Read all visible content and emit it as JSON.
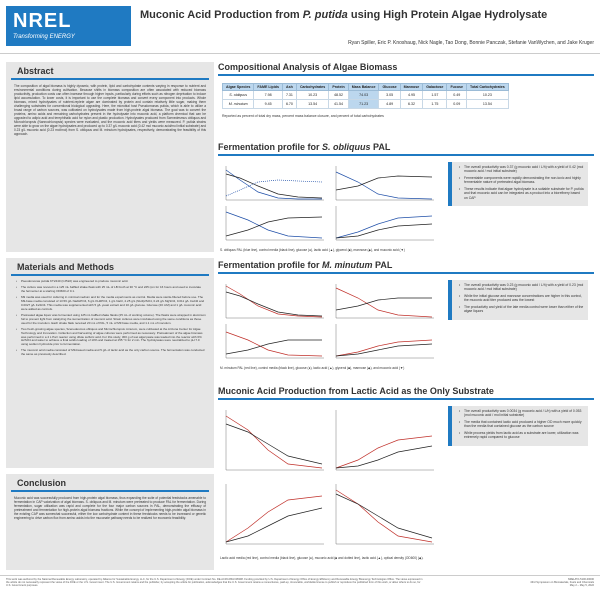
{
  "header": {
    "logo_word": "NREL",
    "logo_tagline": "Transforming ENERGY",
    "title_part1": "Muconic Acid Production from ",
    "title_species": "P. putida",
    "title_part2": " using High Protein Algae Hydrolysate",
    "authors": "Ryan Spiller, Eric P. Knoshaug, Nick Nagle, Tao Dong, Bonnie Panczak, Stefanie VanWychen, and Jake Kruger"
  },
  "abstract": {
    "heading": "Abstract",
    "text": "The composition of algal biomass is highly dynamic, with protein, lipid and carbohydrate contents varying in response to nutrient and environmental conditions during cultivation. Because shifts in biomass composition are often associated with reduced biomass productivity, production costs can often increase through higher inputs, particularly during efforts such as nitrogen deprivation to induce lipid accumulation. To lower costs, it is important to use the complete biomass and convert every component into products. Whole biomass, mixed hydrolysates of nutrient-replete algae are dominated by protein and contain relatively little sugar, making them challenging substrates for conventional biological upgrading. Here, the microbial host Pseudomonas putida, which is able to utilize a broad range of carbon sources, was cultivated on hydrolysates made from high-protein algal biomass. The goal was to convert the proteins, amino acids and remaining carbohydrates present in the hydrolysate into muconic acid, a platform chemical that can be upgraded to adipic acid and terephthalic acid for nylon and plastic production. Hydrolysates produced from Scenedesmus obliquus and Microchloropsis (Nannochloropsis) species were evaluated, and the muconic acid titers and yields were measured. P. putida strains were able to grow on the algae hydrolysates and produced up to 0.37 g/L muconic acid (0.42 mol muconic acid/mol initial substrate) and 0.23 g/L muconic acid (0.23 mol/mol) from S. obliquus and M. minutum hydrolysates, respectively, demonstrating the feasibility of this approach."
  },
  "methods": {
    "heading": "Materials and Methods",
    "items": [
      "Pseudomonas putida KT2440 (CJ522) was engineered to produce muconic acid.",
      "The culture was revived in a 125 mL baffled shake flask with 25 mL of LB broth at 30 °C and 225 rpm for 16 hours and used to inoculate the fermenter at a starting OD600 of 0.1.",
      "M9 media was used for culturing in minimal medium and for the media experiments as control. Media were sterile-filtered before use. The M9-base media consisted of 13.56 g/L Na2HPO4, 6 g/L KH2PO4, 1 g/L NaCl, 2.25 g/L (NH4)2SO4, 0.24 g/L MgSO4, 0.011 g/L CaCl2 and 0.0027 g/L FeSO4. This media was supplemented with 5 g/L yeast extract and 10 g/L glucose. Glucose (20 mM) and 1 g/L muconic acid were added as controls.",
      "Pretreated algae liquor was fermented using 125 mL baffled shake flasks (25 mL of working volume). The flasks were wrapped in aluminum foil to prevent light from catalyzing the isomerization of muconic acid. Strain cultures were incubated using the same conditions as those used for the inoculum. Each shake flask received 20 mL of PAL, 5 mL of M9 base media, and 1.1 mL of inoculum.",
      "Two fresh-growing algae species, Scenedesmus obliquus and Microchloropsis minutum, were cultivated at the Arizona Center for Algae Technology and Innovation. Collection and harvesting of algae cultures were performed as necessary. Pretreatment of the algae biomass was performed in a 4 L Parr reactor using dilute sulfuric acid. For this study, 300 g of wet algal paste was loaded into the reactor with 6% H2SO4 and water to achieve a final solids loading of 10% and treated at 155 °C for 2 min. The hydrolysates were neutralized to pH 7.0 using sodium hydroxide prior to fermentation.",
      "The muconic acid media consisted of M9-based media and 5 g/L of lactic acid as the only carbon source. The fermentation was conducted the same as previously described."
    ]
  },
  "conclusion": {
    "heading": "Conclusion",
    "text": "Muconic acid was successfully produced from high-protein algal biomass, thus expanding the suite of potential feedstocks amenable to fermentation in CAP valorization of algal biomass. S. obliquus and M. minutum were pretreated to produce PAL for fermentation. During fermentation, sugar utilization was rapid and complete for the four major carbon sources in PAL, demonstrating the efficacy of pretreatment and fermentation for high-protein algal biomass fractions. While the concept of implementing high-protein algal biomass in the existing CAP was somewhat successful, either the low carbohydrate content in these feedstocks needs to be increased or genetic engineering to drive carbon flux from amino acids into the muconate pathway needs to be realized for economic feasibility."
  },
  "composition": {
    "heading": "Compositional Analysis of Algae Biomass",
    "columns": [
      "Algae Species",
      "FAME Lipids",
      "Ash",
      "Carbohydrates",
      "Protein",
      "Mass Balance",
      "Glucose",
      "Mannose",
      "Galactose",
      "Fucose",
      "Total Carbohydrates"
    ],
    "rows": [
      [
        "S. obliquus",
        "7.98",
        "7.31",
        "10.23",
        "48.52",
        "74.03",
        "3.05",
        "4.95",
        "1.57",
        "0.49",
        "10.23"
      ],
      [
        "M. minutum",
        "9.45",
        "6.70",
        "13.54",
        "41.54",
        "71.23",
        "4.89",
        "6.32",
        "1.75",
        "0.09",
        "13.54"
      ]
    ],
    "note": "Reported as percent of total dry mass, percent mass balance closure, and percent of total carbohydrates"
  },
  "obliquus": {
    "heading_part1": "Fermentation profile for ",
    "heading_species": "S. obliquus",
    "heading_part2": " PAL",
    "caption": "S. obliquus PAL (blue line), control media (black line), glucose (●), lactic acid (▲), glycerol (■), mannose (◆), and muconic acid (▼)",
    "bullets": [
      "The overall productivity was 0.37 (g muconic acid / L/h) with a yield of 0.42 (mol muconic acid / mol initial substrate)",
      "Fermentable components were rapidly demonstrating the non-toxic and highly fermentable nature of pretreated algal biomass.",
      "These results indicate that algae hydrolysate is a suitable substrate for P. putida and that muconic acid can be integrated as a product into a biorefinery based on CAP"
    ]
  },
  "minutum": {
    "heading_part1": "Fermentation profile for ",
    "heading_species": "M. minutum",
    "heading_part2": " PAL",
    "caption": "M. minutum PAL (red line), control media (black line), glucose (●), lactic acid (▲), glycerol (■), mannose (◆), and muconic acid (▼)",
    "bullets": [
      "The overall productivity was 0.23 (g muconic acid / L/h) with a yield of 0.23 (mol muconic acid / mol initial substrate)",
      "While the initial glucose and mannose concentrations are higher in this control, the muconic acid titer produced was the lowest",
      "The productivity and yield of the late media control were lower than either of the algae liquors"
    ]
  },
  "lactic": {
    "heading": "Muconic Acid Production from Lactic Acid as the Only Substrate",
    "caption": "Lactic acid media (red line), control media (black line), glucose (●), muconic acid (■ and dotted line), lactic acid (▲), optical density (OD600) (◆).",
    "bullets": [
      "The overall productivity was 0.0034 (g muconic acid / L/h) with a yield of 0.053 (mol muconic acid / mol initial substrate)",
      "The media that contained lactic acid produced a higher OD much more quickly than the media that contained glucose as the carbon source",
      "While process yields from lactic acid as a substrate are lower, utilization was extremely rapid compared to glucose"
    ]
  },
  "footer": {
    "left": "This work was authored by the National Renewable Energy Laboratory, operated by Alliance for Sustainable Energy, LLC, for the U.S. Department of Energy (DOE) under Contract No. DE-AC36-08GO28308. Funding provided by U.S. Department of Energy Office of Energy Efficiency and Renewable Energy Bioenergy Technologies Office. The views expressed in the article do not necessarily represent the views of the DOE or the U.S. Government. The U.S. Government retains and the publisher, by accepting the article for publication, acknowledges that the U.S. Government retains a nonexclusive, paid-up, irrevocable, worldwide license to publish or reproduce the published form of this work, or allow others to do so, for U.S. Government purposes.",
    "right_line1": "NREL/PO-5100-00000",
    "right_line2": "43rd Symposium on Biomaterials, Fuels and Chemicals",
    "right_line3": "May 2 – May 5, 2022"
  },
  "colors": {
    "accent": "#1f7ac2",
    "panel_bg": "#e6e6e6",
    "obliquus_line": "#1f4fa8",
    "minutum_line": "#c0302a",
    "lactic_line": "#c0302a",
    "control_line": "#222222"
  }
}
